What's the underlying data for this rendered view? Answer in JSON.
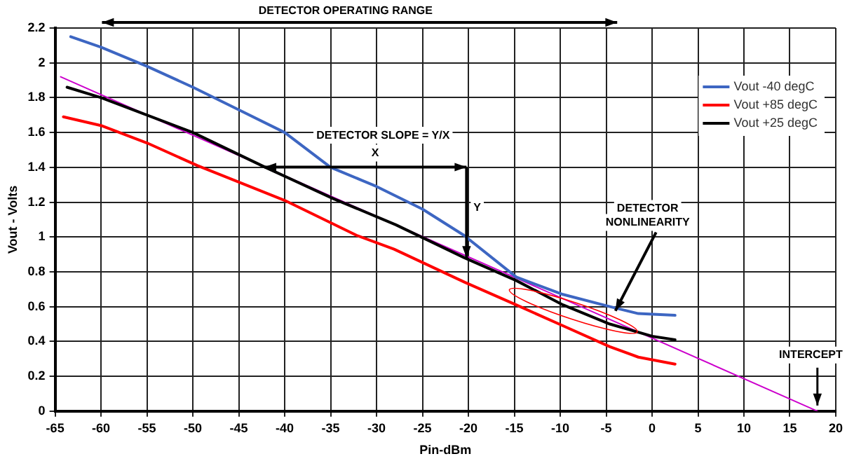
{
  "chart_data": {
    "type": "line",
    "xlabel": "Pin-dBm",
    "ylabel": "Vout - Volts",
    "xlim": [
      -65,
      20
    ],
    "xticks": [
      -65,
      -60,
      -55,
      -50,
      -45,
      -40,
      -35,
      -30,
      -25,
      -20,
      -15,
      -10,
      -5,
      0,
      5,
      10,
      15,
      20
    ],
    "ylim": [
      0,
      2.2
    ],
    "yticks": [
      0,
      0.2,
      0.4,
      0.6,
      0.8,
      1,
      1.2,
      1.4,
      1.6,
      1.8,
      2,
      2.2
    ],
    "grid": true,
    "legend": "top right",
    "marker": "none",
    "line_style": "solid",
    "series": [
      {
        "name": "Vout -40 degC",
        "color": "#3d66c2",
        "x": [
          -63.3,
          -60,
          -55,
          -50,
          -45,
          -40,
          -35,
          -30,
          -25,
          -20.5,
          -14.8,
          -9.7,
          -4.6,
          -1.5,
          2.5
        ],
        "values": [
          2.15,
          2.09,
          1.98,
          1.86,
          1.73,
          1.6,
          1.4,
          1.29,
          1.16,
          1.01,
          0.77,
          0.67,
          0.6,
          0.56,
          0.55
        ]
      },
      {
        "name": "Vout +85 degC",
        "color": "#ff0000",
        "x": [
          -64.1,
          -60,
          -55,
          -49.5,
          -40,
          -32.2,
          -28.1,
          -20.4,
          -14.8,
          -9.7,
          -4.6,
          -1.5,
          2.5
        ],
        "values": [
          1.69,
          1.64,
          1.54,
          1.41,
          1.21,
          1.01,
          0.93,
          0.74,
          0.61,
          0.49,
          0.37,
          0.31,
          0.27
        ]
      },
      {
        "name": "Vout +25 degC",
        "color": "#000000",
        "x": [
          -63.7,
          -60,
          -50,
          -42.1,
          -34.7,
          -27.9,
          -20.4,
          -14.8,
          -9.7,
          -4.6,
          0,
          2.5
        ],
        "values": [
          1.86,
          1.8,
          1.6,
          1.4,
          1.22,
          1.07,
          0.88,
          0.75,
          0.61,
          0.5,
          0.43,
          0.41
        ]
      },
      {
        "color": "#cc00cc",
        "x": [
          -64.4,
          18
        ],
        "values": [
          1.92,
          0
        ]
      }
    ],
    "annotations": [
      "DETECTOR OPERATING RANGE",
      "DETECTOR SLOPE = Y/X",
      "X",
      "Y",
      {
        "text": "DETECTOR NONLINEARITY",
        "x": -4.3,
        "y": 0.56
      },
      {
        "text": "INTERCEPT",
        "x": 18,
        "y": 0
      }
    ]
  }
}
